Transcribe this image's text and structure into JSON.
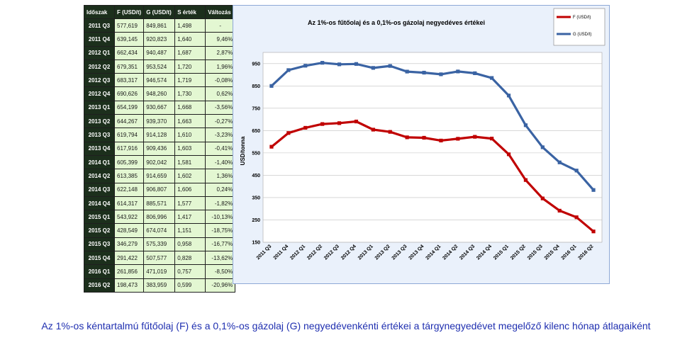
{
  "table": {
    "headers": [
      "Időszak",
      "F (USD/t)",
      "G (USD/t)",
      "S érték",
      "Változás"
    ],
    "rows": [
      [
        "2011 Q3",
        "577,619",
        "849,861",
        "1,498",
        "-"
      ],
      [
        "2011 Q4",
        "639,145",
        "920,823",
        "1,640",
        "9,46%"
      ],
      [
        "2012 Q1",
        "662,434",
        "940,487",
        "1,687",
        "2,87%"
      ],
      [
        "2012 Q2",
        "679,351",
        "953,524",
        "1,720",
        "1,96%"
      ],
      [
        "2012 Q3",
        "683,317",
        "946,574",
        "1,719",
        "-0,08%"
      ],
      [
        "2012 Q4",
        "690,626",
        "948,260",
        "1,730",
        "0,62%"
      ],
      [
        "2013 Q1",
        "654,199",
        "930,667",
        "1,668",
        "-3,56%"
      ],
      [
        "2013 Q2",
        "644,267",
        "939,370",
        "1,663",
        "-0,27%"
      ],
      [
        "2013 Q3",
        "619,794",
        "914,128",
        "1,610",
        "-3,23%"
      ],
      [
        "2013 Q4",
        "617,916",
        "909,436",
        "1,603",
        "-0,41%"
      ],
      [
        "2014 Q1",
        "605,399",
        "902,042",
        "1,581",
        "-1,40%"
      ],
      [
        "2014 Q2",
        "613,385",
        "914,659",
        "1,602",
        "1,36%"
      ],
      [
        "2014 Q3",
        "622,148",
        "906,807",
        "1,606",
        "0,24%"
      ],
      [
        "2014 Q4",
        "614,317",
        "885,571",
        "1,577",
        "-1,82%"
      ],
      [
        "2015 Q1",
        "543,922",
        "806,996",
        "1,417",
        "-10,13%"
      ],
      [
        "2015 Q2",
        "428,549",
        "674,074",
        "1,151",
        "-18,75%"
      ],
      [
        "2015 Q3",
        "346,279",
        "575,339",
        "0,958",
        "-16,77%"
      ],
      [
        "2015 Q4",
        "291,422",
        "507,577",
        "0,828",
        "-13,62%"
      ],
      [
        "2016 Q1",
        "261,856",
        "471,019",
        "0,757",
        "-8,50%"
      ],
      [
        "2016 Q2",
        "198,473",
        "383,959",
        "0,599",
        "-20,96%"
      ]
    ]
  },
  "chart_data": {
    "type": "line",
    "title": "Az 1%-os fűtőolaj és a 0,1%-os gázolaj negyedéves értékei",
    "xlabel": "",
    "ylabel": "USD/tonna",
    "ylim": [
      150,
      1000
    ],
    "yticks": [
      150,
      250,
      350,
      450,
      550,
      650,
      750,
      850,
      950
    ],
    "grid": true,
    "legend_position": "top-right",
    "categories": [
      "2011 Q3",
      "2011 Q4",
      "2012 Q1",
      "2012 Q2",
      "2012 Q3",
      "2012 Q4",
      "2013 Q1",
      "2013 Q2",
      "2013 Q3",
      "2013 Q4",
      "2014 Q1",
      "2014 Q2",
      "2014 Q3",
      "2014 Q4",
      "2015 Q1",
      "2015 Q2",
      "2015 Q3",
      "2015 Q4",
      "2016 Q1",
      "2016 Q2"
    ],
    "series": [
      {
        "name": "F (USD/t)",
        "color": "#c00000",
        "values": [
          577.619,
          639.145,
          662.434,
          679.351,
          683.317,
          690.626,
          654.199,
          644.267,
          619.794,
          617.916,
          605.399,
          613.385,
          622.148,
          614.317,
          543.922,
          428.549,
          346.279,
          291.422,
          261.856,
          198.473
        ]
      },
      {
        "name": "G (USD/t)",
        "color": "#3a63a3",
        "values": [
          849.861,
          920.823,
          940.487,
          953.524,
          946.574,
          948.26,
          930.667,
          939.37,
          914.128,
          909.436,
          902.042,
          914.659,
          906.807,
          885.571,
          806.996,
          674.074,
          575.339,
          507.577,
          471.019,
          383.959
        ]
      }
    ]
  },
  "caption": "Az 1%-os kéntartalmú fűtőolaj (F) és a 0,1%-os gázolaj (G) negyedévenkénti értékei a tárgynegyedévet megelőző kilenc hónap átlagaiként"
}
